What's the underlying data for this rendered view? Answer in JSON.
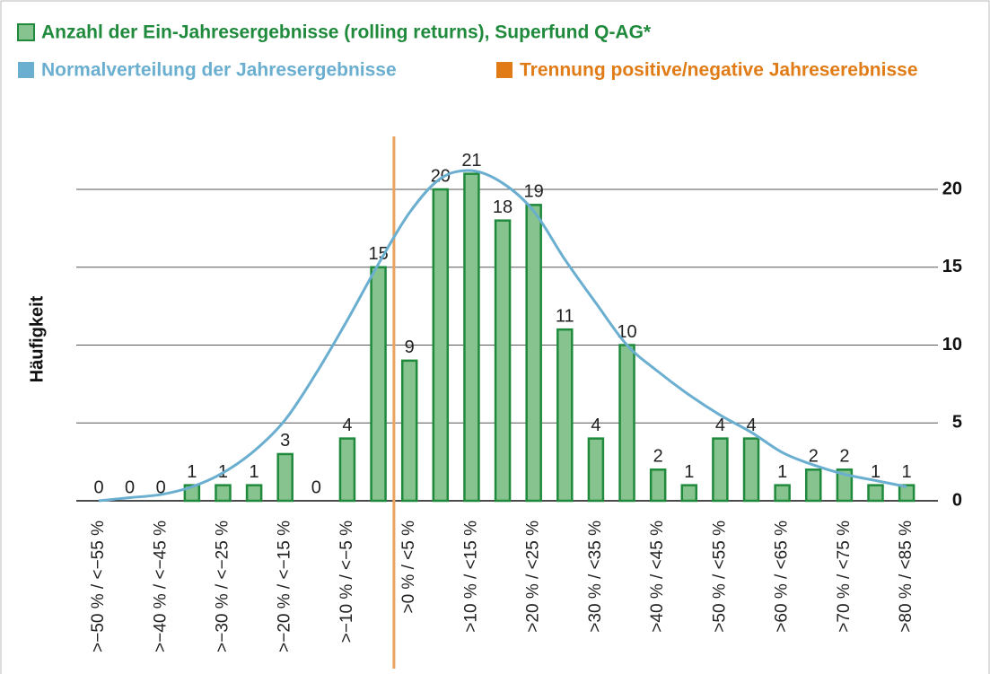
{
  "chart_data": {
    "type": "bar",
    "series": [
      {
        "name": "Anzahl der Ein-Jahresergebnisse (rolling returns), Superfund Q-AG*",
        "color": "#1f8a3c",
        "fill": "#86c38e",
        "type": "bar",
        "values": [
          0,
          0,
          0,
          1,
          1,
          1,
          3,
          0,
          4,
          15,
          9,
          20,
          21,
          18,
          19,
          11,
          4,
          10,
          2,
          1,
          4,
          4,
          1,
          2,
          2,
          1,
          1
        ]
      },
      {
        "name": "Normalverteilung der Jahresergebnisse",
        "color": "#6aaed0",
        "type": "line",
        "values": [
          0,
          0.2,
          0.4,
          0.9,
          1.8,
          3.2,
          5.2,
          8.2,
          11.6,
          15.2,
          18.5,
          20.7,
          21.2,
          20.4,
          18.6,
          15.5,
          12.7,
          10,
          8.3,
          6.8,
          5.5,
          4.4,
          3.1,
          2.3,
          1.7,
          1.3,
          0.9
        ]
      }
    ],
    "divider": {
      "name": "Trennung positive/negative Jahreserebnisse",
      "color": "#e9a35e",
      "legend_color": "#e07b16"
    },
    "categories": [
      ">−50 % / <−55 %",
      null,
      ">−40 % / <−45 %",
      null,
      ">−30 % / <−25 %",
      null,
      ">−20 % / <−15 %",
      null,
      ">−10 % / <−5 %",
      null,
      ">0 % / <5 %",
      null,
      ">10 % / <15 %",
      null,
      ">20 % / <25 %",
      null,
      ">30 % / <35 %",
      null,
      ">40 % / <45 %",
      null,
      ">50 % / <55 %",
      null,
      ">60 % / <65 %",
      null,
      ">70 % / <75 %",
      null,
      ">80 % / <85 %"
    ],
    "y_label": "Häufigkeit",
    "ylim": [
      0,
      25
    ],
    "yticks": [
      0,
      5,
      10,
      15,
      20
    ],
    "grid": true
  }
}
